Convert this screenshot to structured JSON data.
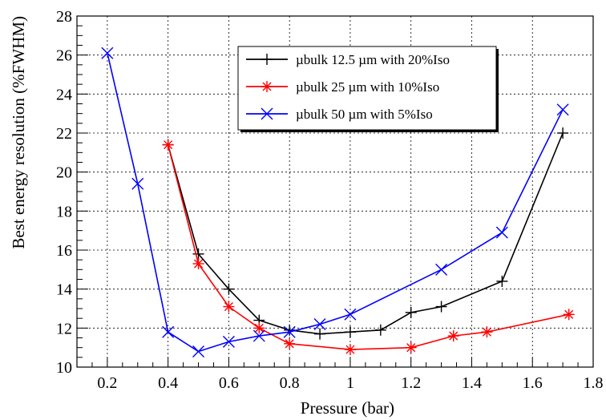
{
  "chart_data": {
    "type": "line",
    "xlabel": "Pressure (bar)",
    "ylabel": "Best energy resolution (%FWHM)",
    "xlim": [
      0.1,
      1.8
    ],
    "ylim": [
      10,
      28
    ],
    "xticks": [
      0.2,
      0.4,
      0.6,
      0.8,
      1.0,
      1.2,
      1.4,
      1.6,
      1.8
    ],
    "xtick_labels": [
      "0.2",
      "0.4",
      "0.6",
      "0.8",
      "1",
      "1.2",
      "1.4",
      "1.6",
      "1.8"
    ],
    "yticks": [
      10,
      12,
      14,
      16,
      18,
      20,
      22,
      24,
      26,
      28
    ],
    "ytick_labels": [
      "10",
      "12",
      "14",
      "16",
      "18",
      "20",
      "22",
      "24",
      "26",
      "28"
    ],
    "grid": true,
    "legend_position": "top-center",
    "series": [
      {
        "name": "µbulk 12.5 µm with 20%Iso",
        "color": "#000000",
        "marker": "plus",
        "x": [
          0.4,
          0.5,
          0.6,
          0.7,
          0.8,
          0.9,
          1.0,
          1.1,
          1.2,
          1.3,
          1.5,
          1.7
        ],
        "y": [
          21.4,
          15.8,
          14.0,
          12.4,
          11.9,
          11.7,
          11.8,
          11.9,
          12.8,
          13.1,
          14.4,
          22.0
        ]
      },
      {
        "name": "µbulk 25 µm with 10%Iso",
        "color": "#ff0000",
        "marker": "star",
        "x": [
          0.4,
          0.5,
          0.6,
          0.7,
          0.8,
          1.0,
          1.2,
          1.34,
          1.45,
          1.72
        ],
        "y": [
          21.4,
          15.3,
          13.1,
          12.0,
          11.2,
          10.9,
          11.0,
          11.6,
          11.8,
          12.7
        ]
      },
      {
        "name": "µbulk 50 µm with 5%Iso",
        "color": "#0000ff",
        "marker": "cross",
        "x": [
          0.2,
          0.3,
          0.4,
          0.5,
          0.6,
          0.7,
          0.8,
          0.9,
          1.0,
          1.3,
          1.5,
          1.7
        ],
        "y": [
          26.1,
          19.4,
          11.8,
          10.8,
          11.3,
          11.6,
          11.8,
          12.2,
          12.7,
          15.0,
          16.9,
          23.2
        ]
      }
    ]
  }
}
